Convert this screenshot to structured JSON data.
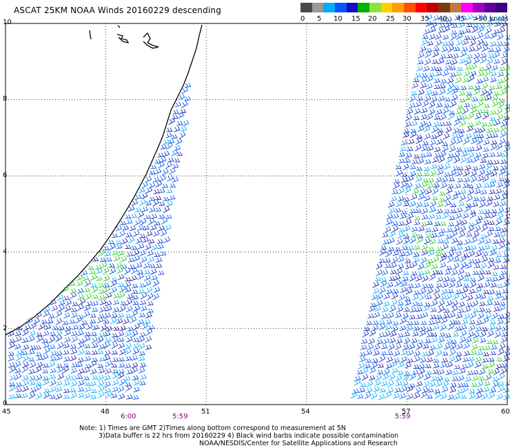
{
  "title": "ASCAT 25KM NOAA Winds 20160229 descending",
  "legend": {
    "colors": [
      "#4a4a4a",
      "#9a9a9a",
      "#00aaff",
      "#0055ff",
      "#1010c0",
      "#00b000",
      "#90e040",
      "#ffd000",
      "#ffa000",
      "#ff5000",
      "#ff0000",
      "#c00000",
      "#7a3a10",
      "#c07a40",
      "#ff00ff",
      "#a000c0",
      "#6000a0",
      "#3a0080"
    ],
    "labels": [
      "0",
      "5",
      "10",
      "15",
      "20",
      "25",
      "30",
      "35",
      "40",
      "45",
      ">50 knots"
    ]
  },
  "map": {
    "lon_range": [
      45,
      60
    ],
    "lat_range": [
      0,
      10
    ],
    "x_ticks": [
      "45",
      "48",
      "51",
      "54",
      "57",
      "60"
    ],
    "y_ticks": [
      "0",
      "2",
      "4",
      "6",
      "8",
      "10"
    ],
    "grid_lons": [
      48,
      51,
      54,
      57
    ],
    "grid_lats": [
      2,
      4,
      6,
      8
    ]
  },
  "swath_times": [
    "6:00",
    "5:59",
    "5:59"
  ],
  "notes": {
    "line1": "Note: 1) Times are GMT 2)Times along bottom correspond to measurement at 5N",
    "line2": "3)Data buffer is 22 hrs from 20160229 4) Black wind barbs indicate possible contamination",
    "line3": "NOAA/NESDIS/Center for Satellite Applications and Research"
  }
}
